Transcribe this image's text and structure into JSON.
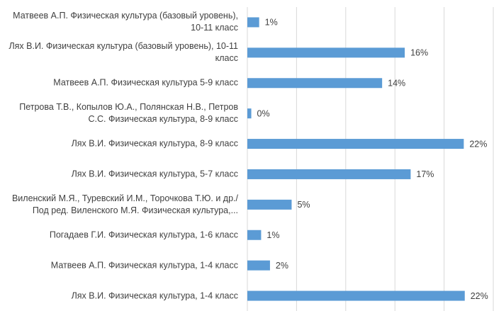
{
  "chart_data": {
    "type": "bar",
    "orientation": "horizontal",
    "categories": [
      "Матвеев А.П. Физическая культура (базовый уровень), 10-11 класс",
      "Лях В.И. Физическая культура (базовый уровень), 10-11 класс",
      "Матвеев А.П. Физическая культура 5-9 класс",
      "Петрова Т.В., Копылов Ю.А., Полянская Н.В., Петров С.С. Физическая культура, 8-9 класс",
      "Лях В.И. Физическая культура, 8-9 класс",
      "Лях В.И. Физическая культура, 5-7 класс",
      "Виленский М.Я., Туревский И.М., Торочкова Т.Ю. и др./ Под ред. Виленского М.Я. Физическая культура,...",
      "Погадаев Г.И. Физическая культура, 1-6 класс",
      "Матвеев А.П. Физическая культура, 1-4 класс",
      "Лях В.И. Физическая культура, 1-4 класс"
    ],
    "values": [
      1.2,
      16,
      13.7,
      0.4,
      22,
      16.6,
      4.5,
      1.4,
      2.3,
      22.1
    ],
    "value_labels": [
      "1%",
      "16%",
      "14%",
      "0%",
      "22%",
      "17%",
      "5%",
      "1%",
      "2%",
      "22%"
    ],
    "color": "#5b9bd5",
    "xlim": [
      0,
      25
    ],
    "xticks": [
      0,
      5,
      10,
      15,
      20,
      25
    ],
    "grid": true
  }
}
